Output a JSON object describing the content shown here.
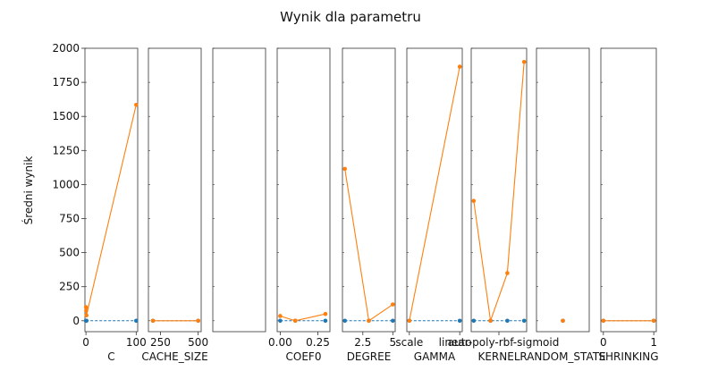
{
  "chart_data": {
    "type": "line",
    "title": "Wynik dla parametru",
    "ylabel": "Średni wynik",
    "ylim": [
      -80,
      2000
    ],
    "yticks": [
      0,
      250,
      500,
      750,
      1000,
      1250,
      1500,
      1750,
      2000
    ],
    "series_colors": {
      "orange": "#ff7f0e",
      "blue": "#1f77b4"
    },
    "panels": [
      {
        "xlabel": "C",
        "xlim": [
          -2,
          103
        ],
        "xticks": [
          {
            "v": 0,
            "label": "0"
          },
          {
            "v": 100,
            "label": "100"
          }
        ],
        "orange": [
          [
            0.1,
            100
          ],
          [
            0.5,
            75
          ],
          [
            1,
            40
          ],
          [
            100,
            1585
          ]
        ],
        "blue": [
          [
            0.1,
            0
          ],
          [
            0.5,
            0
          ],
          [
            1,
            0
          ],
          [
            100,
            0
          ]
        ]
      },
      {
        "xlabel": "CACHE_SIZE",
        "xlim": [
          170,
          520
        ],
        "xticks": [
          {
            "v": 250,
            "label": "250"
          },
          {
            "v": 500,
            "label": "500"
          }
        ],
        "orange": [
          [
            200,
            0
          ],
          [
            500,
            0
          ]
        ],
        "blue": [
          [
            200,
            0
          ],
          [
            500,
            0
          ]
        ]
      },
      {
        "xlabel": "",
        "xlim": [
          0,
          1
        ],
        "xticks": [],
        "orange": [],
        "blue": []
      },
      {
        "xlabel": "COEF0",
        "xlim": [
          -0.02,
          0.33
        ],
        "xticks": [
          {
            "v": 0,
            "label": "0.00"
          },
          {
            "v": 0.25,
            "label": "0.25"
          }
        ],
        "orange": [
          [
            0,
            35
          ],
          [
            0.1,
            0
          ],
          [
            0.3,
            50
          ]
        ],
        "blue": [
          [
            0,
            0
          ],
          [
            0.1,
            0
          ],
          [
            0.3,
            0
          ]
        ]
      },
      {
        "xlabel": "DEGREE",
        "xlim": [
          0.8,
          5.2
        ],
        "xticks": [
          {
            "v": 2.5,
            "label": "2.5"
          },
          {
            "v": 5,
            "label": "5"
          }
        ],
        "orange": [
          [
            1,
            1115
          ],
          [
            3,
            0
          ],
          [
            5,
            120
          ]
        ],
        "blue": [
          [
            1,
            0
          ],
          [
            3,
            0
          ],
          [
            5,
            0
          ]
        ]
      },
      {
        "xlabel": "GAMMA",
        "xlim": [
          -0.05,
          1.05
        ],
        "xticks": [
          {
            "v": 0,
            "label": "scale"
          },
          {
            "v": 1,
            "label": "auto"
          }
        ],
        "orange": [
          [
            0,
            0
          ],
          [
            1,
            1865
          ]
        ],
        "blue": [
          [
            0,
            0
          ],
          [
            1,
            0
          ]
        ]
      },
      {
        "xlabel": "KERNEL",
        "xlim": [
          -0.15,
          3.15
        ],
        "xticks": [
          {
            "v": 1.5,
            "label": "linear-poly-rbf-sigmoid"
          }
        ],
        "orange": [
          [
            0,
            880
          ],
          [
            1,
            0
          ],
          [
            2,
            350
          ],
          [
            3,
            1900
          ]
        ],
        "blue": [
          [
            0,
            0
          ],
          [
            1,
            0
          ],
          [
            2,
            0
          ],
          [
            3,
            0
          ]
        ]
      },
      {
        "xlabel": "RANDOM_STATE",
        "xlim": [
          -1,
          1
        ],
        "xticks": [],
        "orange": [
          [
            0,
            0
          ]
        ],
        "blue": [
          [
            0,
            0
          ]
        ]
      },
      {
        "xlabel": "SHRINKING",
        "xlim": [
          -0.05,
          1.05
        ],
        "xticks": [
          {
            "v": 0,
            "label": "0"
          },
          {
            "v": 1,
            "label": "1"
          }
        ],
        "orange": [
          [
            0,
            0
          ],
          [
            1,
            0
          ]
        ],
        "blue": [
          [
            0,
            0
          ],
          [
            1,
            0
          ]
        ]
      }
    ]
  }
}
